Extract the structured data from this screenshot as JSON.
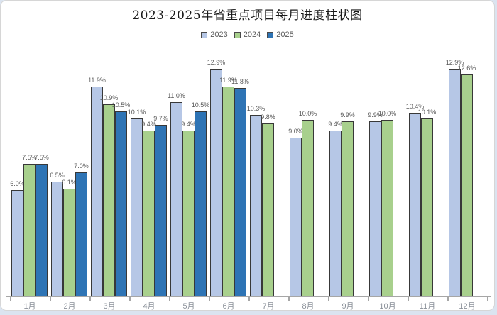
{
  "page": {
    "background_color": "#dbe4f0",
    "card_background": "#ffffff",
    "card_border_color": "#d6d6d6"
  },
  "chart_data": {
    "type": "bar",
    "title": "2023-2025年省重点项目每月进度柱状图",
    "categories": [
      "1月",
      "2月",
      "3月",
      "4月",
      "5月",
      "6月",
      "7月",
      "8月",
      "9月",
      "10月",
      "11月",
      "12月"
    ],
    "series": [
      {
        "name": "2023",
        "color": "#b6c7e6",
        "values": [
          6.0,
          6.5,
          11.9,
          10.1,
          11.0,
          12.9,
          10.3,
          9.0,
          9.4,
          9.9,
          10.4,
          12.9
        ]
      },
      {
        "name": "2024",
        "color": "#a8d08d",
        "values": [
          7.5,
          6.1,
          10.9,
          9.4,
          9.4,
          11.9,
          9.8,
          10.0,
          9.9,
          10.0,
          10.1,
          12.6
        ]
      },
      {
        "name": "2025",
        "color": "#2e74b5",
        "values": [
          7.5,
          7.0,
          10.5,
          9.7,
          10.5,
          11.8,
          null,
          null,
          null,
          null,
          null,
          null
        ]
      }
    ],
    "data_labels": true,
    "label_format": "{value}%",
    "label_color": "#595959",
    "legend_position": "top",
    "legend_text_color": "#595959",
    "bar_border_color": "#383838",
    "axis_color": "#a6a6a6",
    "tick_label_color": "#8a9099",
    "ylim": [
      0,
      13.3
    ],
    "grid": false,
    "y_axis_visible": false
  }
}
